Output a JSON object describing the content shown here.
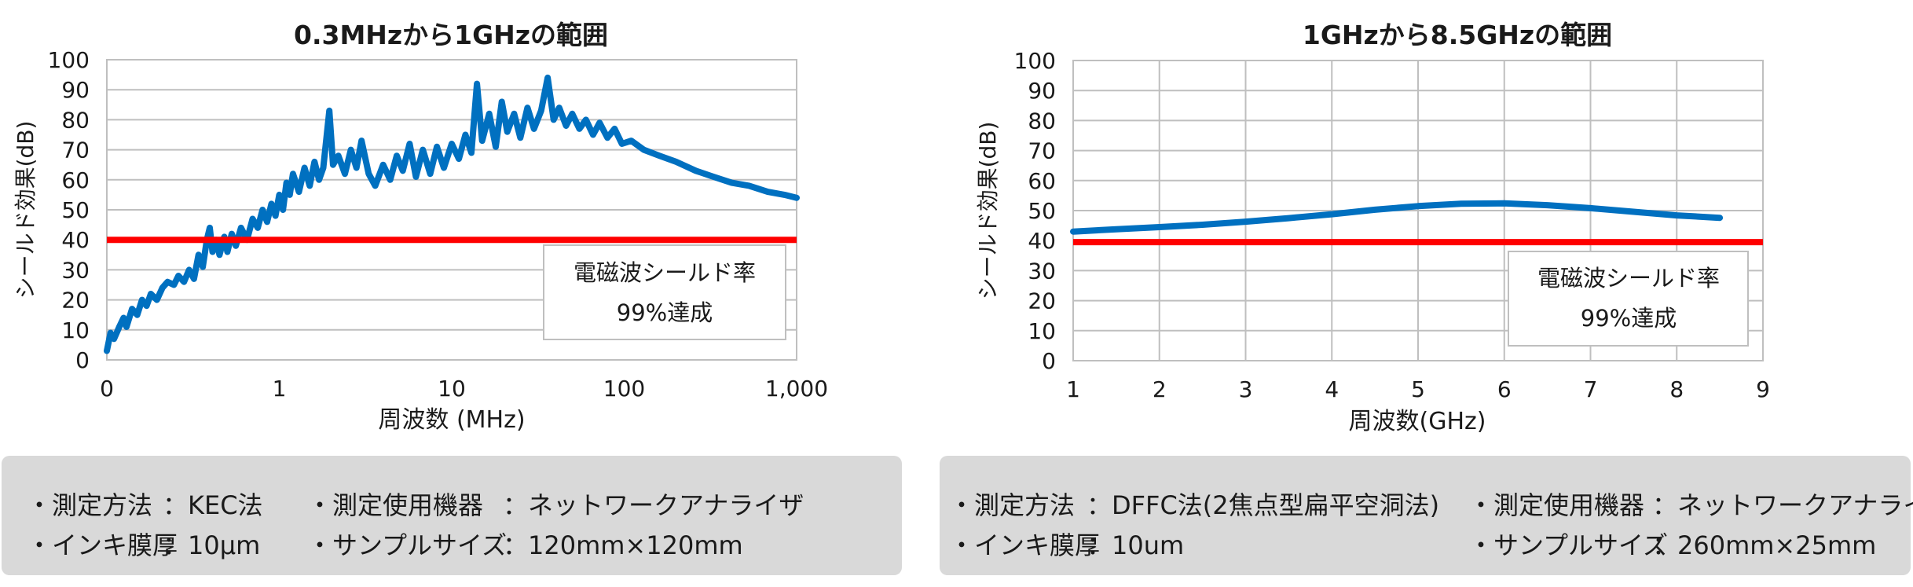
{
  "colors": {
    "series": "#0070c0",
    "threshold": "#ff0000",
    "grid": "#bfbfbf",
    "info_bg": "#d9d9d9"
  },
  "charts": [
    {
      "title": "0.3MHzから1GHzの範囲",
      "ylabel": "シールド効果(dB)",
      "xlabel": "周波数 (MHz)",
      "yticks": [
        "0",
        "10",
        "20",
        "30",
        "40",
        "50",
        "60",
        "70",
        "80",
        "90",
        "100"
      ],
      "xticks": [
        "0",
        "1",
        "10",
        "100",
        "1,000"
      ],
      "annotation": {
        "line1": "電磁波シールド率",
        "line2": "99%達成"
      }
    },
    {
      "title": "1GHzから8.5GHzの範囲",
      "ylabel": "シールド効果(dB)",
      "xlabel": "周波数(GHz)",
      "yticks": [
        "0",
        "10",
        "20",
        "30",
        "40",
        "50",
        "60",
        "70",
        "80",
        "90",
        "100"
      ],
      "xticks": [
        "1",
        "2",
        "3",
        "4",
        "5",
        "6",
        "7",
        "8",
        "9"
      ],
      "annotation": {
        "line1": "電磁波シールド率",
        "line2": "99%達成"
      }
    }
  ],
  "chart_data": [
    {
      "type": "line",
      "title": "0.3MHzから1GHzの範囲",
      "xlabel": "周波数 (MHz)",
      "ylabel": "シールド効果(dB)",
      "xscale": "log",
      "xlim": [
        0.1,
        1000
      ],
      "ylim": [
        0,
        100
      ],
      "grid": true,
      "series": [
        {
          "values": [
            [
              0.1,
              3
            ],
            [
              0.105,
              9
            ],
            [
              0.11,
              7
            ],
            [
              0.118,
              11
            ],
            [
              0.125,
              14
            ],
            [
              0.13,
              11
            ],
            [
              0.14,
              17
            ],
            [
              0.15,
              15
            ],
            [
              0.16,
              20
            ],
            [
              0.17,
              18
            ],
            [
              0.18,
              22
            ],
            [
              0.195,
              20
            ],
            [
              0.21,
              24
            ],
            [
              0.225,
              26
            ],
            [
              0.245,
              25
            ],
            [
              0.26,
              28
            ],
            [
              0.28,
              26
            ],
            [
              0.3,
              30
            ],
            [
              0.32,
              27
            ],
            [
              0.34,
              35
            ],
            [
              0.36,
              31
            ],
            [
              0.38,
              40
            ],
            [
              0.395,
              44
            ],
            [
              0.41,
              36
            ],
            [
              0.43,
              40
            ],
            [
              0.45,
              35
            ],
            [
              0.48,
              41
            ],
            [
              0.5,
              36
            ],
            [
              0.53,
              42
            ],
            [
              0.56,
              38
            ],
            [
              0.6,
              44
            ],
            [
              0.65,
              40
            ],
            [
              0.7,
              47
            ],
            [
              0.75,
              44
            ],
            [
              0.8,
              50
            ],
            [
              0.85,
              46
            ],
            [
              0.9,
              52
            ],
            [
              0.95,
              48
            ],
            [
              1.0,
              55
            ],
            [
              1.05,
              50
            ],
            [
              1.1,
              59
            ],
            [
              1.15,
              55
            ],
            [
              1.2,
              62
            ],
            [
              1.3,
              56
            ],
            [
              1.4,
              64
            ],
            [
              1.5,
              58
            ],
            [
              1.6,
              66
            ],
            [
              1.7,
              60
            ],
            [
              1.8,
              64
            ],
            [
              1.95,
              83
            ],
            [
              2.05,
              65
            ],
            [
              2.2,
              68
            ],
            [
              2.4,
              62
            ],
            [
              2.6,
              70
            ],
            [
              2.8,
              64
            ],
            [
              3.0,
              73
            ],
            [
              3.3,
              62
            ],
            [
              3.6,
              58
            ],
            [
              4.0,
              65
            ],
            [
              4.4,
              60
            ],
            [
              4.8,
              68
            ],
            [
              5.2,
              63
            ],
            [
              5.7,
              72
            ],
            [
              6.2,
              61
            ],
            [
              6.8,
              70
            ],
            [
              7.5,
              62
            ],
            [
              8.2,
              71
            ],
            [
              9.0,
              64
            ],
            [
              10.0,
              72
            ],
            [
              11.0,
              67
            ],
            [
              12.0,
              75
            ],
            [
              13.0,
              69
            ],
            [
              14.0,
              92
            ],
            [
              15.0,
              73
            ],
            [
              16.5,
              82
            ],
            [
              18.0,
              71
            ],
            [
              19.5,
              86
            ],
            [
              21.0,
              76
            ],
            [
              23.0,
              82
            ],
            [
              25.0,
              74
            ],
            [
              27.5,
              84
            ],
            [
              30.0,
              77
            ],
            [
              33.0,
              83
            ],
            [
              36.0,
              94
            ],
            [
              39.0,
              80
            ],
            [
              42.0,
              84
            ],
            [
              46.0,
              78
            ],
            [
              50.0,
              82
            ],
            [
              55.0,
              77
            ],
            [
              60.0,
              80
            ],
            [
              66.0,
              75
            ],
            [
              72.0,
              79
            ],
            [
              80.0,
              74
            ],
            [
              88.0,
              77
            ],
            [
              97.0,
              72
            ],
            [
              110.0,
              73
            ],
            [
              130.0,
              70
            ],
            [
              160.0,
              68
            ],
            [
              200.0,
              66
            ],
            [
              260.0,
              63
            ],
            [
              330.0,
              61
            ],
            [
              420.0,
              59
            ],
            [
              530.0,
              58
            ],
            [
              680.0,
              56
            ],
            [
              850.0,
              55
            ],
            [
              1000.0,
              54
            ]
          ]
        }
      ],
      "threshold": 40
    },
    {
      "type": "line",
      "title": "1GHzから8.5GHzの範囲",
      "xlabel": "周波数(GHz)",
      "ylabel": "シールド効果(dB)",
      "xlim": [
        1,
        9
      ],
      "ylim": [
        0,
        100
      ],
      "grid": true,
      "series": [
        {
          "values": [
            [
              1.0,
              43
            ],
            [
              1.5,
              43.8
            ],
            [
              2.0,
              44.5
            ],
            [
              2.5,
              45.3
            ],
            [
              3.0,
              46.3
            ],
            [
              3.5,
              47.5
            ],
            [
              4.0,
              48.8
            ],
            [
              4.5,
              50.3
            ],
            [
              5.0,
              51.5
            ],
            [
              5.5,
              52.3
            ],
            [
              6.0,
              52.4
            ],
            [
              6.5,
              51.8
            ],
            [
              7.0,
              50.8
            ],
            [
              7.5,
              49.6
            ],
            [
              8.0,
              48.4
            ],
            [
              8.5,
              47.6
            ]
          ]
        }
      ],
      "threshold": 39.5
    }
  ],
  "info": [
    {
      "method_label": "・測定方法",
      "method_value": "：KEC法",
      "device_label": "・測定使用機器",
      "device_value": "：ネットワークアナライザ",
      "ink_label": "・インキ膜厚",
      "ink_value": "：10µm",
      "size_label": "・サンプルサイズ",
      "size_value": "：120mm×120mm"
    },
    {
      "method_label": "・測定方法",
      "method_value": "：DFFC法(2焦点型扁平空洞法)",
      "device_label": "・測定使用機器",
      "device_value": "：ネットワークアナライザ",
      "ink_label": "・インキ膜厚",
      "ink_value": "：10um",
      "size_label": "・サンプルサイズ",
      "size_value": "：260mm×25mm"
    }
  ]
}
